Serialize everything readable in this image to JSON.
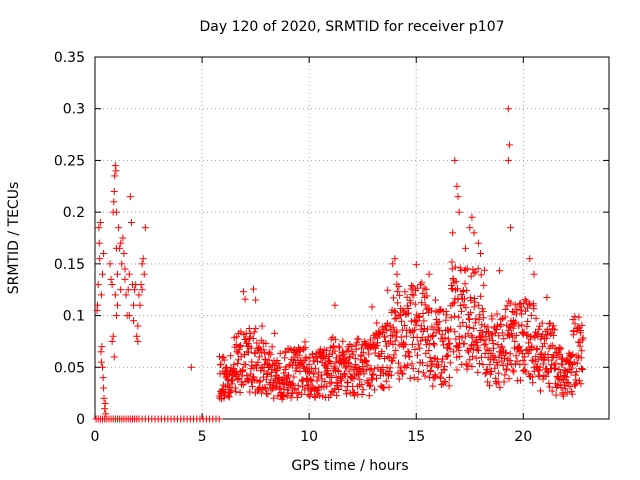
{
  "chart_data": {
    "type": "scatter",
    "title": "Day 120 of 2020, SRMTID for receiver p107",
    "xlabel": "GPS time / hours",
    "ylabel": "SRMTID / TECUs",
    "xlim": [
      0,
      24
    ],
    "ylim": [
      0,
      0.35
    ],
    "x_ticks": [
      "0",
      "5",
      "10",
      "15",
      "20"
    ],
    "y_ticks": [
      "0",
      "0.05",
      "0.1",
      "0.15",
      "0.2",
      "0.25",
      "0.3",
      "0.35"
    ],
    "grid": true,
    "marker": "+",
    "color": "#ff0000",
    "series": [
      {
        "name": "SRMTID",
        "points": [
          [
            0.05,
            0.0
          ],
          [
            0.15,
            0.0
          ],
          [
            0.25,
            0.0
          ],
          [
            0.35,
            0.0
          ],
          [
            0.45,
            0.0
          ],
          [
            0.55,
            0.0
          ],
          [
            0.65,
            0.0
          ],
          [
            0.75,
            0.0
          ],
          [
            0.85,
            0.0
          ],
          [
            0.95,
            0.0
          ],
          [
            1.05,
            0.0
          ],
          [
            1.15,
            0.0
          ],
          [
            1.25,
            0.0
          ],
          [
            1.35,
            0.0
          ],
          [
            1.45,
            0.0
          ],
          [
            1.55,
            0.0
          ],
          [
            1.65,
            0.0
          ],
          [
            1.75,
            0.0
          ],
          [
            1.85,
            0.0
          ],
          [
            1.95,
            0.0
          ],
          [
            2.05,
            0.0
          ],
          [
            2.2,
            0.0
          ],
          [
            2.35,
            0.0
          ],
          [
            2.5,
            0.0
          ],
          [
            2.65,
            0.0
          ],
          [
            2.8,
            0.0
          ],
          [
            2.95,
            0.0
          ],
          [
            3.1,
            0.0
          ],
          [
            3.25,
            0.0
          ],
          [
            3.4,
            0.0
          ],
          [
            3.55,
            0.0
          ],
          [
            3.7,
            0.0
          ],
          [
            3.85,
            0.0
          ],
          [
            4.0,
            0.0
          ],
          [
            4.15,
            0.0
          ],
          [
            4.3,
            0.0
          ],
          [
            4.45,
            0.0
          ],
          [
            4.6,
            0.0
          ],
          [
            4.75,
            0.0
          ],
          [
            4.9,
            0.0
          ],
          [
            5.05,
            0.0
          ],
          [
            5.2,
            0.0
          ],
          [
            5.35,
            0.0
          ],
          [
            5.5,
            0.0
          ],
          [
            5.65,
            0.0
          ],
          [
            5.8,
            0.0
          ],
          [
            0.1,
            0.105
          ],
          [
            0.12,
            0.11
          ],
          [
            0.15,
            0.13
          ],
          [
            0.18,
            0.185
          ],
          [
            0.2,
            0.17
          ],
          [
            0.22,
            0.155
          ],
          [
            0.25,
            0.19
          ],
          [
            0.28,
            0.065
          ],
          [
            0.3,
            0.055
          ],
          [
            0.32,
            0.07
          ],
          [
            0.35,
            0.05
          ],
          [
            0.38,
            0.04
          ],
          [
            0.4,
            0.03
          ],
          [
            0.42,
            0.02
          ],
          [
            0.45,
            0.01
          ],
          [
            0.48,
            0.015
          ],
          [
            0.5,
            0.005
          ],
          [
            0.3,
            0.12
          ],
          [
            0.35,
            0.14
          ],
          [
            0.4,
            0.16
          ],
          [
            0.7,
            0.15
          ],
          [
            0.75,
            0.135
          ],
          [
            0.8,
            0.13
          ],
          [
            0.85,
            0.2
          ],
          [
            0.88,
            0.21
          ],
          [
            0.9,
            0.22
          ],
          [
            0.92,
            0.235
          ],
          [
            0.95,
            0.245
          ],
          [
            0.98,
            0.24
          ],
          [
            1.0,
            0.2
          ],
          [
            0.8,
            0.075
          ],
          [
            0.85,
            0.08
          ],
          [
            0.9,
            0.06
          ],
          [
            0.95,
            0.12
          ],
          [
            1.0,
            0.1
          ],
          [
            1.05,
            0.11
          ],
          [
            1.1,
            0.185
          ],
          [
            1.15,
            0.165
          ],
          [
            1.2,
            0.17
          ],
          [
            1.25,
            0.15
          ],
          [
            1.3,
            0.175
          ],
          [
            1.35,
            0.16
          ],
          [
            1.4,
            0.135
          ],
          [
            1.45,
            0.12
          ],
          [
            1.5,
            0.1
          ],
          [
            1.55,
            0.125
          ],
          [
            1.6,
            0.14
          ],
          [
            1.65,
            0.215
          ],
          [
            1.7,
            0.19
          ],
          [
            1.75,
            0.13
          ],
          [
            1.8,
            0.11
          ],
          [
            1.85,
            0.125
          ],
          [
            1.9,
            0.13
          ],
          [
            1.95,
            0.08
          ],
          [
            2.0,
            0.09
          ],
          [
            2.05,
            0.12
          ],
          [
            2.1,
            0.11
          ],
          [
            2.15,
            0.13
          ],
          [
            2.2,
            0.15
          ],
          [
            2.25,
            0.155
          ],
          [
            2.3,
            0.14
          ],
          [
            2.35,
            0.185
          ],
          [
            1.0,
            0.165
          ],
          [
            1.05,
            0.14
          ],
          [
            1.2,
            0.125
          ],
          [
            1.4,
            0.145
          ],
          [
            1.6,
            0.1
          ],
          [
            1.8,
            0.095
          ],
          [
            2.0,
            0.075
          ],
          [
            2.2,
            0.125
          ],
          [
            4.5,
            0.05
          ]
        ]
      }
    ]
  }
}
